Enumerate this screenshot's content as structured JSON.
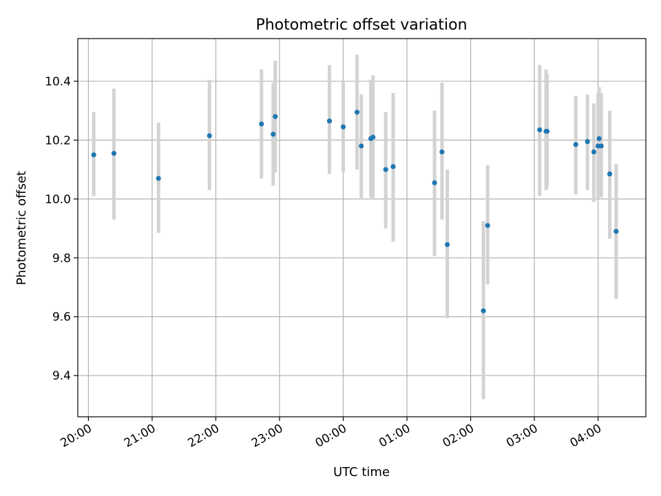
{
  "chart_data": {
    "type": "scatter",
    "title": "Photometric offset variation",
    "xlabel": "UTC time",
    "ylabel": "Photometric offset",
    "xlim": [
      "19:50",
      "04:45"
    ],
    "ylim": [
      9.26,
      10.545
    ],
    "x_ticks": [
      "20:00",
      "21:00",
      "22:00",
      "23:00",
      "00:00",
      "01:00",
      "02:00",
      "03:00",
      "04:00"
    ],
    "y_ticks": [
      9.4,
      9.6,
      9.8,
      10.0,
      10.2,
      10.4
    ],
    "y_tick_labels": [
      "9.4",
      "9.6",
      "9.8",
      "10.0",
      "10.2",
      "10.4"
    ],
    "grid": true,
    "colors": {
      "point": "#1f77b4",
      "errorbar": "#d3d3d3",
      "grid": "#b0b0b0"
    },
    "series": [
      {
        "points": [
          {
            "t": "20:05",
            "y": 10.15,
            "lo": 10.01,
            "hi": 10.295
          },
          {
            "t": "20:24",
            "y": 10.155,
            "lo": 9.93,
            "hi": 10.375
          },
          {
            "t": "21:06",
            "y": 10.07,
            "lo": 9.885,
            "hi": 10.26
          },
          {
            "t": "21:54",
            "y": 10.215,
            "lo": 10.03,
            "hi": 10.405
          },
          {
            "t": "22:43",
            "y": 10.255,
            "lo": 10.07,
            "hi": 10.44
          },
          {
            "t": "22:54",
            "y": 10.22,
            "lo": 10.045,
            "hi": 10.395
          },
          {
            "t": "22:56",
            "y": 10.28,
            "lo": 10.09,
            "hi": 10.47
          },
          {
            "t": "23:47",
            "y": 10.265,
            "lo": 10.085,
            "hi": 10.455
          },
          {
            "t": "00:00",
            "y": 10.245,
            "lo": 10.09,
            "hi": 10.4
          },
          {
            "t": "00:13",
            "y": 10.295,
            "lo": 10.1,
            "hi": 10.49
          },
          {
            "t": "00:17",
            "y": 10.18,
            "lo": 10.0,
            "hi": 10.355
          },
          {
            "t": "00:26",
            "y": 10.205,
            "lo": 10.005,
            "hi": 10.405
          },
          {
            "t": "00:28",
            "y": 10.21,
            "lo": 10.0,
            "hi": 10.42
          },
          {
            "t": "00:40",
            "y": 10.1,
            "lo": 9.9,
            "hi": 10.295
          },
          {
            "t": "00:47",
            "y": 10.11,
            "lo": 9.855,
            "hi": 10.36
          },
          {
            "t": "01:26",
            "y": 10.055,
            "lo": 9.805,
            "hi": 10.3
          },
          {
            "t": "01:33",
            "y": 10.16,
            "lo": 9.93,
            "hi": 10.395
          },
          {
            "t": "01:38",
            "y": 9.845,
            "lo": 9.595,
            "hi": 10.1
          },
          {
            "t": "02:12",
            "y": 9.62,
            "lo": 9.32,
            "hi": 9.925
          },
          {
            "t": "02:16",
            "y": 9.91,
            "lo": 9.71,
            "hi": 10.115
          },
          {
            "t": "03:05",
            "y": 10.235,
            "lo": 10.01,
            "hi": 10.455
          },
          {
            "t": "03:11",
            "y": 10.23,
            "lo": 10.03,
            "hi": 10.44
          },
          {
            "t": "03:12",
            "y": 10.23,
            "lo": 10.04,
            "hi": 10.425
          },
          {
            "t": "03:39",
            "y": 10.185,
            "lo": 10.015,
            "hi": 10.35
          },
          {
            "t": "03:50",
            "y": 10.195,
            "lo": 10.03,
            "hi": 10.355
          },
          {
            "t": "03:56",
            "y": 10.16,
            "lo": 9.99,
            "hi": 10.325
          },
          {
            "t": "04:00",
            "y": 10.18,
            "lo": 10.0,
            "hi": 10.36
          },
          {
            "t": "04:01",
            "y": 10.205,
            "lo": 10.025,
            "hi": 10.38
          },
          {
            "t": "04:03",
            "y": 10.18,
            "lo": 10.005,
            "hi": 10.36
          },
          {
            "t": "04:11",
            "y": 10.085,
            "lo": 9.865,
            "hi": 10.3
          },
          {
            "t": "04:17",
            "y": 9.89,
            "lo": 9.66,
            "hi": 10.12
          }
        ]
      }
    ]
  }
}
